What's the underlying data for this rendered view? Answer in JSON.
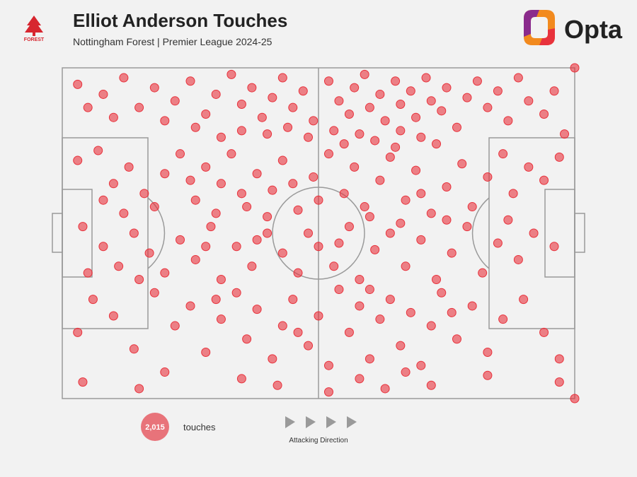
{
  "chart_data": {
    "type": "scatter",
    "title": "Elliot Anderson Touches",
    "subtitle": "Nottingham Forest | Premier League 2024-25",
    "brand": "Opta",
    "club_badge_text": "FOREST",
    "color": "#e8323c",
    "xlim": [
      0,
      100
    ],
    "ylim": [
      0,
      100
    ],
    "x": [
      3,
      8,
      12,
      15,
      18,
      22,
      25,
      28,
      30,
      33,
      35,
      37,
      39,
      41,
      43,
      45,
      47,
      49,
      52,
      54,
      56,
      57,
      59,
      60,
      62,
      63,
      65,
      66,
      68,
      69,
      71,
      72,
      74,
      75,
      77,
      79,
      81,
      83,
      85,
      87,
      89,
      91,
      94,
      96,
      98,
      40,
      44,
      48,
      53,
      58,
      61,
      66,
      70,
      73,
      35,
      31,
      26,
      20,
      10,
      5,
      3,
      7,
      10,
      13,
      16,
      20,
      23,
      26,
      28,
      31,
      33,
      36,
      38,
      41,
      43,
      46,
      49,
      52,
      55,
      57,
      59,
      62,
      64,
      67,
      69,
      72,
      75,
      78,
      80,
      83,
      86,
      88,
      91,
      94,
      97,
      50,
      45,
      35,
      25,
      18,
      8,
      12,
      30,
      40,
      60,
      70,
      65,
      55,
      4,
      8,
      11,
      14,
      17,
      20,
      23,
      26,
      29,
      31,
      34,
      37,
      40,
      43,
      46,
      48,
      50,
      53,
      56,
      58,
      61,
      64,
      67,
      70,
      73,
      76,
      79,
      82,
      85,
      89,
      92,
      96,
      5,
      15,
      28,
      38,
      54,
      66,
      75,
      87,
      3,
      6,
      10,
      14,
      18,
      22,
      25,
      28,
      31,
      34,
      36,
      38,
      41,
      43,
      45,
      48,
      50,
      52,
      54,
      56,
      58,
      60,
      62,
      64,
      66,
      68,
      70,
      72,
      74,
      77,
      80,
      83,
      86,
      90,
      94,
      97,
      30,
      46,
      60,
      76,
      4,
      15,
      20,
      35,
      42,
      52,
      58,
      63,
      67,
      72,
      83,
      97,
      100,
      100
    ],
    "y": [
      95,
      92,
      97,
      88,
      94,
      90,
      96,
      86,
      92,
      98,
      89,
      94,
      85,
      91,
      97,
      88,
      93,
      84,
      96,
      90,
      86,
      94,
      98,
      88,
      92,
      84,
      96,
      89,
      93,
      85,
      97,
      90,
      87,
      94,
      82,
      91,
      96,
      88,
      93,
      84,
      97,
      90,
      86,
      93,
      80,
      80,
      82,
      79,
      81,
      80,
      78,
      81,
      79,
      77,
      81,
      79,
      82,
      84,
      85,
      88,
      72,
      75,
      65,
      70,
      62,
      68,
      74,
      60,
      70,
      65,
      74,
      58,
      68,
      63,
      72,
      57,
      67,
      74,
      62,
      70,
      58,
      66,
      73,
      60,
      69,
      56,
      64,
      71,
      58,
      67,
      74,
      62,
      70,
      66,
      73,
      60,
      65,
      62,
      66,
      58,
      60,
      56,
      56,
      55,
      55,
      62,
      76,
      77,
      52,
      46,
      40,
      50,
      44,
      38,
      48,
      42,
      52,
      36,
      46,
      40,
      50,
      44,
      38,
      50,
      46,
      40,
      52,
      36,
      45,
      50,
      40,
      48,
      36,
      44,
      52,
      38,
      47,
      42,
      50,
      46,
      38,
      36,
      46,
      48,
      47,
      53,
      54,
      54,
      20,
      30,
      25,
      15,
      32,
      22,
      28,
      14,
      24,
      32,
      18,
      27,
      12,
      22,
      30,
      16,
      25,
      10,
      33,
      20,
      28,
      12,
      24,
      30,
      16,
      26,
      10,
      22,
      32,
      18,
      28,
      14,
      24,
      30,
      20,
      12,
      30,
      20,
      33,
      26,
      5,
      3,
      8,
      6,
      4,
      2,
      6,
      3,
      8,
      4,
      7,
      5,
      100,
      0
    ],
    "total": {
      "value": 2015,
      "label": "2,015"
    },
    "total_caption": "touches",
    "direction_label": "Attacking Direction"
  }
}
